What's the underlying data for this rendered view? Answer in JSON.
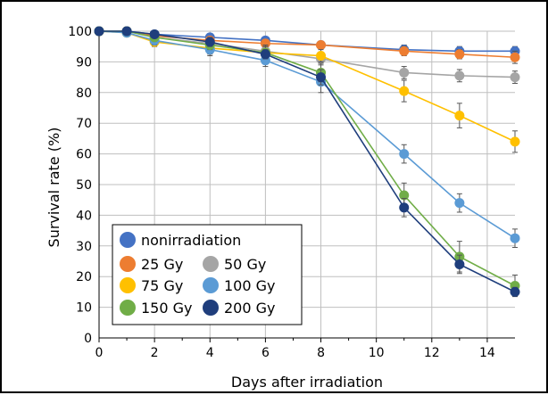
{
  "chart_data": {
    "type": "line",
    "xlabel": "Days after irradiation",
    "ylabel": "Survival rate (%)",
    "xlim": [
      0,
      15
    ],
    "ylim": [
      0,
      100
    ],
    "x_ticks": [
      "0",
      "2",
      "4",
      "6",
      "8",
      "10",
      "12",
      "14"
    ],
    "y_ticks": [
      "0",
      "10",
      "20",
      "30",
      "40",
      "50",
      "60",
      "70",
      "80",
      "90",
      "100"
    ],
    "x_tick_values": [
      0,
      2,
      4,
      6,
      8,
      10,
      12,
      14
    ],
    "y_tick_values": [
      0,
      10,
      20,
      30,
      40,
      50,
      60,
      70,
      80,
      90,
      100
    ],
    "grid": true,
    "legend_position": "bottom-left",
    "x": [
      0,
      1,
      2,
      4,
      6,
      8,
      11,
      13,
      15
    ],
    "series": [
      {
        "name": "nonirradiation",
        "color": "#4472C4",
        "values": [
          100,
          100,
          99,
          98,
          97,
          95.5,
          94,
          93.5,
          93.5
        ],
        "errors": [
          0,
          0.5,
          1,
          1,
          1,
          1,
          1.5,
          1.5,
          1.5
        ]
      },
      {
        "name": "25 Gy",
        "color": "#ED7D31",
        "values": [
          100,
          100,
          98.5,
          97,
          96,
          95.5,
          93.5,
          92.5,
          91.5
        ],
        "errors": [
          0,
          0.5,
          1,
          1,
          1,
          1,
          1.5,
          1.5,
          2
        ]
      },
      {
        "name": "50 Gy",
        "color": "#A5A5A5",
        "values": [
          100,
          100,
          98,
          96,
          93.5,
          91,
          86.5,
          85.5,
          85
        ],
        "errors": [
          0,
          0.5,
          1,
          1.5,
          2,
          2,
          2,
          2,
          2
        ]
      },
      {
        "name": "75 Gy",
        "color": "#FFC000",
        "values": [
          100,
          99.5,
          96.5,
          94.5,
          93,
          92,
          80.5,
          72.5,
          64
        ],
        "errors": [
          0,
          0.5,
          1.5,
          2,
          2,
          2,
          3.5,
          4,
          3.5
        ]
      },
      {
        "name": "100 Gy",
        "color": "#5B9BD5",
        "values": [
          100,
          99.5,
          97,
          94,
          90.5,
          83.5,
          60,
          44,
          32.5
        ],
        "errors": [
          0,
          0.5,
          1.5,
          2,
          2,
          3.5,
          3,
          3,
          3
        ]
      },
      {
        "name": "150 Gy",
        "color": "#70AD47",
        "values": [
          100,
          100,
          98,
          95.5,
          93,
          86.5,
          46.5,
          26.5,
          17
        ],
        "errors": [
          0,
          0.5,
          1,
          1.5,
          2,
          3,
          4,
          5,
          3.5
        ]
      },
      {
        "name": "200 Gy",
        "color": "#1F3E7C",
        "values": [
          100,
          100,
          99,
          96.5,
          92.5,
          85,
          42.5,
          24,
          15
        ],
        "errors": [
          0,
          0.5,
          1,
          1.5,
          1.5,
          2.5,
          3,
          3,
          1.5
        ]
      }
    ]
  }
}
